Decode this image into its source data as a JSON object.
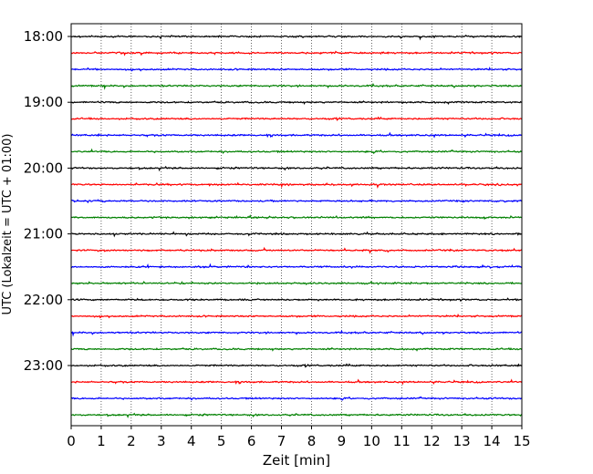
{
  "chart_data": {
    "type": "line",
    "title": "",
    "xlabel": "Zeit  [min]",
    "ylabel": "UTC (Lokalzeit = UTC + 01:00)",
    "xlim": [
      0,
      15
    ],
    "x_ticks": [
      "0",
      "1",
      "2",
      "3",
      "4",
      "5",
      "6",
      "7",
      "8",
      "9",
      "10",
      "11",
      "12",
      "13",
      "14",
      "15"
    ],
    "y_tick_labels": [
      "18:00",
      "19:00",
      "20:00",
      "21:00",
      "22:00",
      "23:00"
    ],
    "grid": "vertical dotted",
    "legend": "none",
    "trace_interval_minutes": 15,
    "trace_colors": [
      "#000000",
      "#ff0000",
      "#0000ff",
      "#008000"
    ],
    "series": [
      {
        "start": "18:00",
        "color": "#000000"
      },
      {
        "start": "18:15",
        "color": "#ff0000"
      },
      {
        "start": "18:30",
        "color": "#0000ff"
      },
      {
        "start": "18:45",
        "color": "#008000"
      },
      {
        "start": "19:00",
        "color": "#000000"
      },
      {
        "start": "19:15",
        "color": "#ff0000"
      },
      {
        "start": "19:30",
        "color": "#0000ff"
      },
      {
        "start": "19:45",
        "color": "#008000"
      },
      {
        "start": "20:00",
        "color": "#000000"
      },
      {
        "start": "20:15",
        "color": "#ff0000"
      },
      {
        "start": "20:30",
        "color": "#0000ff"
      },
      {
        "start": "20:45",
        "color": "#008000"
      },
      {
        "start": "21:00",
        "color": "#000000"
      },
      {
        "start": "21:15",
        "color": "#ff0000"
      },
      {
        "start": "21:30",
        "color": "#0000ff"
      },
      {
        "start": "21:45",
        "color": "#008000"
      },
      {
        "start": "22:00",
        "color": "#000000"
      },
      {
        "start": "22:15",
        "color": "#ff0000"
      },
      {
        "start": "22:30",
        "color": "#0000ff"
      },
      {
        "start": "22:45",
        "color": "#008000"
      },
      {
        "start": "23:00",
        "color": "#000000"
      },
      {
        "start": "23:15",
        "color": "#ff0000"
      },
      {
        "start": "23:30",
        "color": "#0000ff"
      },
      {
        "start": "23:45",
        "color": "#008000"
      }
    ]
  }
}
